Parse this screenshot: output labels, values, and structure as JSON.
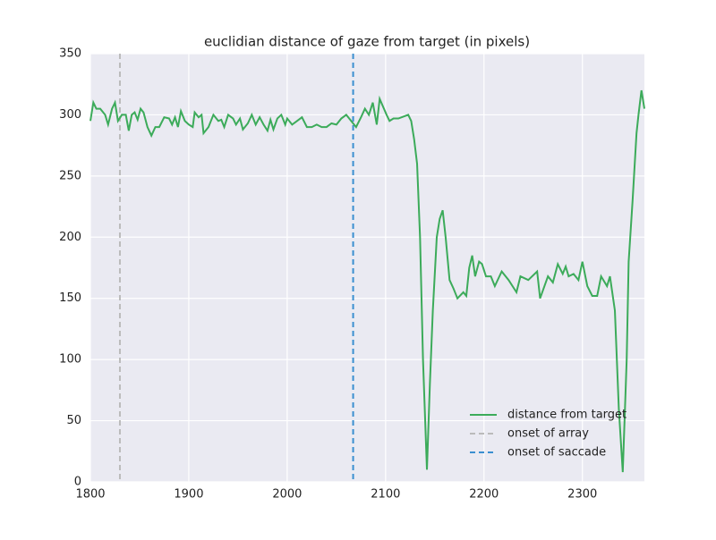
{
  "chart_data": {
    "type": "line",
    "title": "euclidian distance of gaze from target (in pixels)",
    "x": [
      1800,
      1803,
      1806,
      1810,
      1815,
      1818,
      1822,
      1825,
      1828,
      1832,
      1836,
      1839,
      1842,
      1845,
      1848,
      1851,
      1854,
      1858,
      1862,
      1866,
      1870,
      1875,
      1880,
      1883,
      1886,
      1889,
      1892,
      1896,
      1900,
      1904,
      1906,
      1910,
      1913,
      1915,
      1920,
      1925,
      1930,
      1933,
      1936,
      1940,
      1945,
      1948,
      1952,
      1955,
      1960,
      1964,
      1968,
      1972,
      1976,
      1980,
      1983,
      1986,
      1990,
      1994,
      1998,
      2000,
      2005,
      2010,
      2015,
      2020,
      2025,
      2030,
      2035,
      2040,
      2045,
      2050,
      2055,
      2060,
      2064,
      2070,
      2075,
      2079,
      2083,
      2087,
      2091,
      2094,
      2101,
      2104,
      2108,
      2113,
      2123,
      2126,
      2129,
      2132,
      2135,
      2138,
      2142,
      2145,
      2148,
      2152,
      2155,
      2158,
      2161,
      2165,
      2169,
      2173,
      2179,
      2182,
      2185,
      2188,
      2191,
      2195,
      2198,
      2202,
      2207,
      2211,
      2218,
      2225,
      2233,
      2237,
      2245,
      2254,
      2257,
      2265,
      2270,
      2275,
      2280,
      2283,
      2286,
      2291,
      2296,
      2300,
      2305,
      2310,
      2315,
      2319,
      2325,
      2328,
      2333,
      2337,
      2341,
      2345,
      2347,
      2351,
      2355,
      2357,
      2360,
      2363
    ],
    "series": [
      {
        "name": "distance from target",
        "color": "#3cab5a",
        "values": [
          295,
          310,
          305,
          305,
          300,
          292,
          305,
          310,
          295,
          300,
          300,
          287,
          300,
          302,
          296,
          305,
          302,
          290,
          283,
          290,
          290,
          298,
          297,
          292,
          298,
          290,
          303,
          295,
          292,
          290,
          302,
          298,
          300,
          285,
          290,
          300,
          295,
          296,
          290,
          300,
          297,
          292,
          297,
          288,
          293,
          300,
          292,
          298,
          292,
          287,
          296,
          288,
          297,
          300,
          292,
          297,
          292,
          295,
          298,
          290,
          290,
          292,
          290,
          290,
          293,
          292,
          297,
          300,
          296,
          290,
          298,
          305,
          300,
          310,
          292,
          313,
          300,
          295,
          297,
          297,
          300,
          295,
          280,
          260,
          200,
          100,
          10,
          80,
          140,
          200,
          215,
          222,
          200,
          165,
          158,
          150,
          155,
          152,
          175,
          185,
          168,
          180,
          178,
          168,
          168,
          160,
          172,
          165,
          155,
          168,
          165,
          172,
          150,
          168,
          163,
          178,
          170,
          176,
          168,
          170,
          165,
          180,
          160,
          152,
          152,
          168,
          160,
          168,
          140,
          60,
          8,
          100,
          180,
          230,
          285,
          300,
          320,
          305
        ]
      }
    ],
    "vlines": [
      {
        "name": "onset of array",
        "x": 1830,
        "color": "#bbbbbb"
      },
      {
        "name": "onset of saccade",
        "x": 2067,
        "color": "#3a8fd0"
      }
    ],
    "xlim": [
      1800,
      2363
    ],
    "ylim": [
      0,
      350
    ],
    "xticks": [
      1800,
      1900,
      2000,
      2100,
      2200,
      2300
    ],
    "yticks": [
      0,
      50,
      100,
      150,
      200,
      250,
      300,
      350
    ],
    "grid": true,
    "legend": "lower right"
  }
}
